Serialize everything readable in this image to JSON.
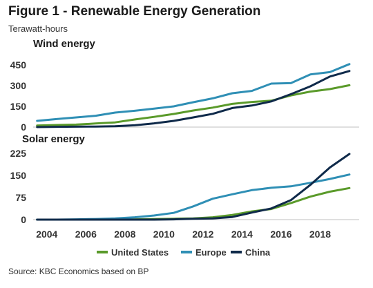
{
  "header": {
    "title": "Figure 1 - Renewable Energy Generation",
    "subtitle": "Terawatt-hours"
  },
  "footer": {
    "source": "Source: KBC Economics based on BP"
  },
  "colors": {
    "United States": "#5a9a2a",
    "Europe": "#2f8fb5",
    "China": "#0f2a4a",
    "axis": "#bfbfbf"
  },
  "chart_data": [
    {
      "type": "line",
      "title": "Wind energy",
      "x": [
        2003.5,
        2004.5,
        2005.5,
        2006.5,
        2007.5,
        2008.5,
        2009.5,
        2010.5,
        2011.5,
        2012.5,
        2013.5,
        2014.5,
        2015.5,
        2016.5,
        2017.5,
        2018.5,
        2019.5
      ],
      "xticks": [
        2004,
        2006,
        2008,
        2010,
        2012,
        2014,
        2016,
        2018
      ],
      "yticks": [
        0,
        150,
        300,
        450
      ],
      "ylim": [
        0,
        470
      ],
      "series": [
        {
          "name": "United States",
          "values": [
            11,
            15,
            18,
            26,
            34,
            55,
            74,
            95,
            120,
            141,
            168,
            182,
            191,
            229,
            257,
            275,
            303
          ]
        },
        {
          "name": "Europe",
          "values": [
            45,
            58,
            70,
            82,
            105,
            118,
            134,
            150,
            180,
            208,
            245,
            262,
            315,
            318,
            381,
            398,
            456
          ]
        },
        {
          "name": "China",
          "values": [
            0,
            2,
            3,
            4,
            6,
            13,
            27,
            45,
            70,
            96,
            138,
            156,
            186,
            238,
            295,
            366,
            406
          ]
        }
      ]
    },
    {
      "type": "line",
      "title": "Solar energy",
      "x": [
        2003.5,
        2004.5,
        2005.5,
        2006.5,
        2007.5,
        2008.5,
        2009.5,
        2010.5,
        2011.5,
        2012.5,
        2013.5,
        2014.5,
        2015.5,
        2016.5,
        2017.5,
        2018.5,
        2019.5
      ],
      "xticks": [
        2004,
        2006,
        2008,
        2010,
        2012,
        2014,
        2016,
        2018
      ],
      "yticks": [
        0,
        75,
        150,
        225
      ],
      "ylim": [
        0,
        240
      ],
      "series": [
        {
          "name": "United States",
          "values": [
            0,
            0,
            0,
            0,
            1,
            1,
            2,
            3,
            4,
            8,
            16,
            28,
            36,
            56,
            78,
            95,
            107
          ]
        },
        {
          "name": "Europe",
          "values": [
            0,
            0,
            1,
            2,
            4,
            8,
            14,
            23,
            45,
            71,
            86,
            100,
            108,
            113,
            125,
            138,
            153
          ]
        },
        {
          "name": "China",
          "values": [
            0,
            0,
            0,
            0,
            0,
            0,
            0,
            1,
            3,
            4,
            9,
            24,
            38,
            66,
            118,
            177,
            223
          ]
        }
      ]
    }
  ],
  "legend": {
    "items": [
      "United States",
      "Europe",
      "China"
    ]
  }
}
